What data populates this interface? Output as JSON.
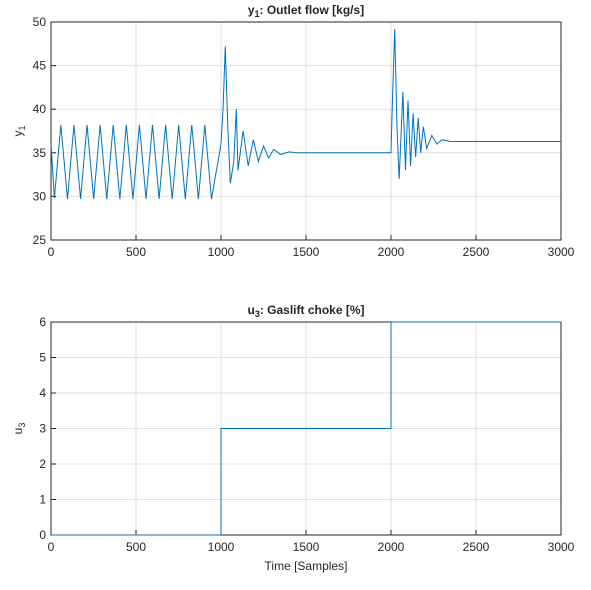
{
  "chart_data": [
    {
      "type": "line",
      "title": {
        "symbol": "y",
        "subscript": "1",
        "text": ": Outlet flow [kg/s]"
      },
      "ylabel": {
        "symbol": "y",
        "subscript": "1"
      },
      "color": "#0072bd",
      "grid": true,
      "xlim": [
        0,
        3000
      ],
      "xticks": [
        0,
        500,
        1000,
        1500,
        2000,
        2500,
        3000
      ],
      "ylim": [
        25,
        50
      ],
      "yticks": [
        25,
        30,
        35,
        40,
        45,
        50
      ],
      "x": [
        0,
        20,
        58,
        97,
        135,
        174,
        212,
        251,
        289,
        328,
        366,
        405,
        443,
        482,
        520,
        559,
        597,
        636,
        674,
        713,
        751,
        790,
        828,
        867,
        905,
        944,
        1000,
        1012,
        1025,
        1040,
        1055,
        1075,
        1090,
        1100,
        1130,
        1160,
        1190,
        1220,
        1250,
        1280,
        1310,
        1350,
        1400,
        1450,
        2000,
        2010,
        2022,
        2035,
        2048,
        2070,
        2085,
        2100,
        2115,
        2130,
        2145,
        2160,
        2175,
        2190,
        2210,
        2240,
        2270,
        2300,
        2350,
        3000
      ],
      "values": [
        36,
        29.8,
        38.2,
        29.7,
        38.2,
        29.7,
        38.2,
        29.7,
        38.2,
        29.7,
        38.2,
        29.7,
        38.2,
        29.7,
        38.2,
        29.7,
        38.2,
        29.7,
        38.2,
        29.7,
        38.2,
        29.7,
        38.2,
        29.7,
        38.2,
        29.7,
        36,
        40,
        47.2,
        38,
        31.5,
        34,
        40,
        33,
        37.5,
        33.5,
        36.5,
        34,
        35.8,
        34.4,
        35.4,
        34.8,
        35.1,
        35,
        35,
        42,
        49.2,
        38,
        32,
        42,
        33,
        41,
        33.5,
        39.5,
        34.5,
        39,
        35,
        38,
        35.5,
        37,
        36,
        36.5,
        36.3,
        36.3
      ]
    },
    {
      "type": "line",
      "title": {
        "symbol": "u",
        "subscript": "3",
        "text": ": Gaslift choke [%]"
      },
      "ylabel": {
        "symbol": "u",
        "subscript": "3"
      },
      "xlabel": "Time [Samples]",
      "color": "#0072bd",
      "grid": true,
      "xlim": [
        0,
        3000
      ],
      "xticks": [
        0,
        500,
        1000,
        1500,
        2000,
        2500,
        3000
      ],
      "ylim": [
        0,
        6
      ],
      "yticks": [
        0,
        1,
        2,
        3,
        4,
        5,
        6
      ],
      "x": [
        0,
        1000,
        1000,
        2000,
        2000,
        3000
      ],
      "values": [
        0,
        0,
        3,
        3,
        6,
        6
      ]
    }
  ]
}
